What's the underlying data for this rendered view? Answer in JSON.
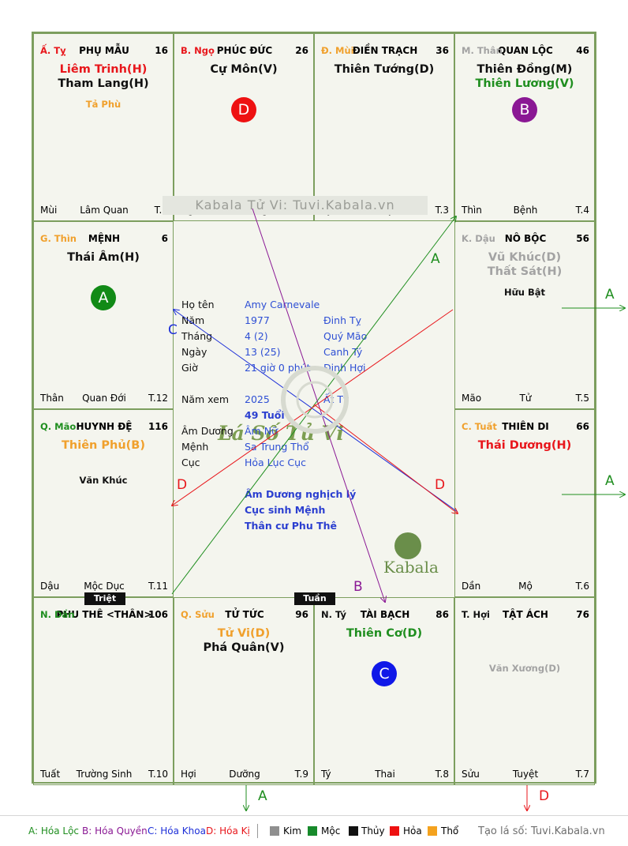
{
  "watermark": "Kabala Tử Vi: Tuvi.Kabala.vn",
  "center_title": "Lá Số Tử Vi",
  "palaces": [
    {
      "can": "Ấ. Tỵ",
      "palace": "PHỤ MẪU",
      "num": "16",
      "stars": [
        {
          "t": "Liêm Trinh(H)",
          "c": "red"
        },
        {
          "t": "Tham Lang(H)",
          "c": "black"
        }
      ],
      "minor": [
        {
          "t": "Tả Phù",
          "c": "orange"
        }
      ],
      "foot": [
        "Mùi",
        "Lâm Quan",
        "T.1"
      ],
      "badge": null
    },
    {
      "can": "B. Ngọ",
      "palace": "PHÚC ĐỨC",
      "num": "26",
      "stars": [
        {
          "t": "Cự Môn(V)",
          "c": "black"
        }
      ],
      "minor": [],
      "foot": [
        "Ngọ",
        "Đế Vượng",
        "T.2"
      ],
      "badge": {
        "letter": "D",
        "color": "#ee1111"
      }
    },
    {
      "can": "Đ. Mùi",
      "palace": "ĐIỀN TRẠCH",
      "num": "36",
      "stars": [
        {
          "t": "Thiên Tướng(D)",
          "c": "black"
        }
      ],
      "minor": [],
      "foot": [
        "Tỵ",
        "Suy",
        "T.3"
      ],
      "badge": null
    },
    {
      "can": "M. Thân",
      "palace": "QUAN LỘC",
      "num": "46",
      "stars": [
        {
          "t": "Thiên Đồng(M)",
          "c": "black"
        },
        {
          "t": "Thiên Lương(V)",
          "c": "green"
        }
      ],
      "minor": [],
      "foot": [
        "Thìn",
        "Bệnh",
        "T.4"
      ],
      "badge": {
        "letter": "B",
        "color": "#8a1894"
      }
    },
    {
      "can": "G. Thìn",
      "palace": "MỆNH",
      "num": "6",
      "stars": [
        {
          "t": "Thái Âm(H)",
          "c": "black"
        }
      ],
      "minor": [],
      "foot": [
        "Thân",
        "Quan Đới",
        "T.12"
      ],
      "badge": {
        "letter": "A",
        "color": "#118a16"
      }
    },
    {
      "can": "K. Dậu",
      "palace": "NÔ BỘC",
      "num": "56",
      "stars": [
        {
          "t": "Vũ Khúc(D)",
          "c": "gray"
        },
        {
          "t": "Thất Sát(H)",
          "c": "gray"
        }
      ],
      "minor": [
        {
          "t": "Hữu Bật",
          "c": "black"
        }
      ],
      "foot": [
        "Mão",
        "Tử",
        "T.5"
      ],
      "badge": null
    },
    {
      "can": "Q. Mão",
      "palace": "HUYNH ĐỆ",
      "num": "116",
      "stars": [
        {
          "t": "Thiên Phủ(B)",
          "c": "orange"
        }
      ],
      "minor": [
        {
          "t": "Văn Khúc",
          "c": "black"
        }
      ],
      "foot": [
        "Dậu",
        "Mộc Dục",
        "T.11"
      ],
      "badge": null
    },
    {
      "can": "C. Tuất",
      "palace": "THIÊN DI",
      "num": "66",
      "stars": [
        {
          "t": "Thái Dương(H)",
          "c": "red"
        }
      ],
      "minor": [],
      "foot": [
        "Dần",
        "Mộ",
        "T.6"
      ],
      "badge": null
    },
    {
      "can": "N. Dần",
      "palace": "PHU THÊ <THÂN>",
      "num": "106",
      "stars": [],
      "minor": [],
      "foot": [
        "Tuất",
        "Trường Sinh",
        "T.10"
      ],
      "badge": null
    },
    {
      "can": "Q. Sửu",
      "palace": "TỬ TỨC",
      "num": "96",
      "stars": [
        {
          "t": "Tử Vi(D)",
          "c": "orange"
        },
        {
          "t": "Phá Quân(V)",
          "c": "black"
        }
      ],
      "minor": [],
      "foot": [
        "Hợi",
        "Dưỡng",
        "T.9"
      ],
      "badge": null
    },
    {
      "can": "N. Tý",
      "palace": "TÀI BẠCH",
      "num": "86",
      "stars": [
        {
          "t": "Thiên Cơ(D)",
          "c": "green"
        }
      ],
      "minor": [],
      "foot": [
        "Tý",
        "Thai",
        "T.8"
      ],
      "badge": {
        "letter": "C",
        "color": "#1018e8"
      }
    },
    {
      "can": "T. Hợi",
      "palace": "TẬT ÁCH",
      "num": "76",
      "stars": [],
      "minor": [
        {
          "t": "Văn Xương(D)",
          "c": "gray"
        }
      ],
      "foot": [
        "Sửu",
        "Tuyệt",
        "T.7"
      ],
      "badge": null
    }
  ],
  "info": {
    "ho_ten": {
      "label": "Họ tên",
      "value": "Amy Carnevale"
    },
    "nam": {
      "label": "Năm",
      "value": "1977",
      "extra": "Đinh Tỵ"
    },
    "thang": {
      "label": "Tháng",
      "value": "4  (2)",
      "extra": "Quý Mão"
    },
    "ngay": {
      "label": "Ngày",
      "value": "13  (25)",
      "extra": "Canh Tý"
    },
    "gio": {
      "label": "Giờ",
      "value": "21 giờ 0 phút",
      "extra": "Đinh Hợi"
    },
    "nam_xem": {
      "label": "Năm xem",
      "value": "2025",
      "extra": "Ất Tỵ"
    },
    "tuoi": "49 Tuổi",
    "am_duong": {
      "label": "Âm Dương",
      "value": "Âm Nữ"
    },
    "menh": {
      "label": "Mệnh",
      "value": "Sa Trung Thổ"
    },
    "cuc": {
      "label": "Cục",
      "value": "Hỏa Lục Cục"
    },
    "notes": [
      "Âm Dương nghịch lý",
      "Cục sinh Mệnh",
      "Thân cư Phu Thê"
    ]
  },
  "tags": {
    "triet": "Triệt",
    "tuan": "Tuần"
  },
  "brand": "Kabala",
  "annotations": {
    "A": "A",
    "B": "B",
    "C": "C",
    "D": "D"
  },
  "legend": {
    "a": "A: Hóa Lộc",
    "b": "B: Hóa Quyền",
    "c": "C: Hóa Khoa",
    "d": "D: Hóa Kị",
    "elements": [
      {
        "name": "Kim",
        "color": "#8f8f8f"
      },
      {
        "name": "Mộc",
        "color": "#178a2b"
      },
      {
        "name": "Thủy",
        "color": "#111111"
      },
      {
        "name": "Hỏa",
        "color": "#ee1111"
      },
      {
        "name": "Thổ",
        "color": "#f4a21e"
      }
    ],
    "site": "Tạo lá số: Tuvi.Kabala.vn"
  },
  "colors": {
    "a": "#1f8e1f",
    "b": "#8a1894",
    "c": "#1d2fd8",
    "d": "#e8161b"
  }
}
